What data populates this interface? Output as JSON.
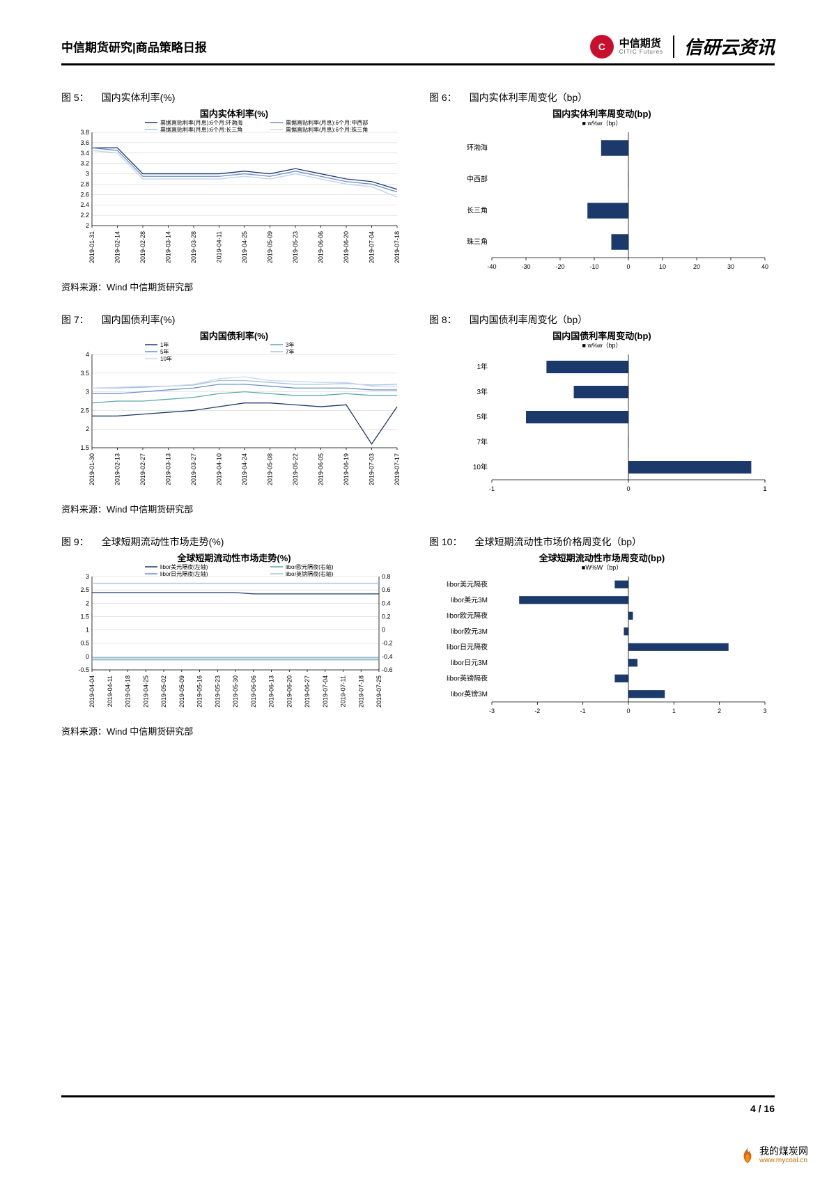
{
  "header": {
    "left": "中信期货研究|商品策略日报",
    "company": "中信期货",
    "company_en": "CITIC Futures",
    "brand": "信研云资讯"
  },
  "src": "资料来源：Wind  中信期货研究部",
  "footer": {
    "page": "4",
    "sep": "/",
    "total": "16"
  },
  "watermark": {
    "name": "我的煤炭网",
    "url": "www.mycoal.cn"
  },
  "fig5": {
    "label": "图 5：",
    "title": "国内实体利率(%)",
    "chart_title": "国内实体利率(%)",
    "legend": [
      "票据直贴利率(月息):6个月:环渤海",
      "票据直贴利率(月息):6个月:中西部",
      "票据直贴利率(月息):6个月:长三角",
      "票据直贴利率(月息):6个月:珠三角"
    ],
    "y": {
      "min": 2.0,
      "max": 3.8,
      "step": 0.2
    },
    "x": [
      "2019-01-31",
      "2019-02-14",
      "2019-02-28",
      "2019-03-14",
      "2019-03-28",
      "2019-04-11",
      "2019-04-25",
      "2019-05-09",
      "2019-05-23",
      "2019-06-06",
      "2019-06-20",
      "2019-07-04",
      "2019-07-18"
    ],
    "series": [
      [
        3.5,
        3.5,
        3.0,
        3.0,
        3.0,
        3.0,
        3.05,
        3.0,
        3.1,
        3.0,
        2.9,
        2.85,
        2.7
      ],
      [
        3.5,
        3.45,
        2.95,
        2.95,
        2.95,
        2.95,
        3.0,
        2.95,
        3.05,
        2.95,
        2.85,
        2.8,
        2.65
      ],
      [
        3.45,
        3.4,
        2.9,
        2.9,
        2.9,
        2.9,
        2.95,
        2.9,
        3.0,
        2.9,
        2.8,
        2.75,
        2.55
      ],
      [
        3.45,
        3.4,
        2.9,
        2.9,
        2.9,
        2.9,
        2.95,
        2.9,
        3.0,
        2.9,
        2.8,
        2.75,
        2.55
      ]
    ],
    "colors": [
      "#1b3a6b",
      "#6b8fc7",
      "#a6c0e0",
      "#c9d8ec"
    ]
  },
  "fig6": {
    "label": "图 6：",
    "title": "国内实体利率周变化（bp）",
    "chart_title": "国内实体利率周变动(bp)",
    "legend": "■ w%w（bp）",
    "categories": [
      "环渤海",
      "中西部",
      "长三角",
      "珠三角"
    ],
    "values": [
      -8,
      0,
      -12,
      -5
    ],
    "x": {
      "min": -40,
      "max": 40,
      "step": 10
    },
    "bar_color": "#1b3a6b"
  },
  "fig7": {
    "label": "图 7：",
    "title": "国内国债利率(%)",
    "chart_title": "国内国债利率(%)",
    "legend": [
      "1年",
      "3年",
      "5年",
      "7年",
      "10年"
    ],
    "y": {
      "min": 1.5,
      "max": 4.0,
      "step": 0.5
    },
    "x": [
      "2019-01-30",
      "2019-02-13",
      "2019-02-27",
      "2019-03-13",
      "2019-03-27",
      "2019-04-10",
      "2019-04-24",
      "2019-05-08",
      "2019-05-22",
      "2019-06-05",
      "2019-06-19",
      "2019-07-03",
      "2019-07-17"
    ],
    "series": [
      [
        2.35,
        2.35,
        2.4,
        2.45,
        2.5,
        2.6,
        2.7,
        2.7,
        2.65,
        2.6,
        2.65,
        1.6,
        2.6
      ],
      [
        2.7,
        2.75,
        2.75,
        2.8,
        2.85,
        2.95,
        3.0,
        2.95,
        2.9,
        2.9,
        2.95,
        2.9,
        2.9
      ],
      [
        2.95,
        2.95,
        3.0,
        3.05,
        3.1,
        3.2,
        3.2,
        3.15,
        3.1,
        3.1,
        3.1,
        3.05,
        3.05
      ],
      [
        3.1,
        3.1,
        3.12,
        3.15,
        3.18,
        3.3,
        3.3,
        3.25,
        3.2,
        3.2,
        3.22,
        3.18,
        3.2
      ],
      [
        3.1,
        3.12,
        3.15,
        3.15,
        3.2,
        3.35,
        3.4,
        3.3,
        3.28,
        3.25,
        3.25,
        3.15,
        3.15
      ]
    ],
    "colors": [
      "#1b3a6b",
      "#5fa8a8",
      "#6b8fc7",
      "#a6c0e0",
      "#c9d8ec"
    ]
  },
  "fig8": {
    "label": "图 8：",
    "title": "国内国债利率周变化（bp）",
    "chart_title": "国内国债利率周变动(bp)",
    "legend": "■ w%w（bp）",
    "categories": [
      "1年",
      "3年",
      "5年",
      "7年",
      "10年"
    ],
    "values": [
      -0.6,
      -0.4,
      -0.75,
      0,
      0.9
    ],
    "x": {
      "min": -1,
      "max": 1,
      "ticks": [
        -1,
        0,
        1,
        1
      ]
    },
    "bar_color": "#1b3a6b"
  },
  "fig9": {
    "label": "图 9：",
    "title": "全球短期流动性市场走势(%)",
    "chart_title": "全球短期流动性市场走势(%)",
    "legend_l": [
      "libor美元隔夜(左轴)",
      "libor欧元隔夜(右轴)"
    ],
    "legend_r": [
      "libor日元隔夜(左轴)",
      "libor英镑隔夜(右轴)"
    ],
    "yL": {
      "min": -0.5,
      "max": 3.0,
      "step": 0.5
    },
    "yR": {
      "min": -0.6,
      "max": 0.8,
      "step": 0.2
    },
    "x": [
      "2019-04-04",
      "2019-04-11",
      "2019-04-18",
      "2019-04-25",
      "2019-05-02",
      "2019-05-09",
      "2019-05-16",
      "2019-05-23",
      "2019-05-30",
      "2019-06-06",
      "2019-06-13",
      "2019-06-20",
      "2019-06-27",
      "2019-07-04",
      "2019-07-11",
      "2019-07-18",
      "2019-07-25"
    ],
    "series": [
      [
        2.4,
        2.4,
        2.4,
        2.4,
        2.4,
        2.4,
        2.4,
        2.4,
        2.4,
        2.35,
        2.35,
        2.35,
        2.35,
        2.35,
        2.35,
        2.35,
        2.35
      ],
      [
        -0.05,
        -0.05,
        -0.05,
        -0.05,
        -0.05,
        -0.05,
        -0.05,
        -0.05,
        -0.05,
        -0.05,
        -0.05,
        -0.05,
        -0.05,
        -0.05,
        -0.05,
        -0.05,
        -0.05
      ]
    ],
    "seriesR": [
      [
        -0.45,
        -0.45,
        -0.45,
        -0.45,
        -0.45,
        -0.45,
        -0.45,
        -0.45,
        -0.45,
        -0.45,
        -0.45,
        -0.45,
        -0.45,
        -0.45,
        -0.45,
        -0.45,
        -0.45
      ],
      [
        0.7,
        0.7,
        0.7,
        0.7,
        0.7,
        0.7,
        0.7,
        0.7,
        0.7,
        0.7,
        0.7,
        0.7,
        0.7,
        0.7,
        0.7,
        0.7,
        0.7
      ]
    ],
    "colors": [
      "#1b3a6b",
      "#5fa8a8",
      "#6b8fc7",
      "#a6c0e0"
    ]
  },
  "fig10": {
    "label": "图 10：",
    "title": "全球短期流动性市场价格周变化（bp）",
    "chart_title": "全球短期流动性市场周变动(bp)",
    "legend": "■W%W（bp）",
    "categories": [
      "libor美元隔夜",
      "libor美元3M",
      "libor欧元隔夜",
      "libor欧元3M",
      "libor日元隔夜",
      "libor日元3M",
      "libor英镑隔夜",
      "libor英镑3M"
    ],
    "values": [
      -0.3,
      -2.4,
      0.1,
      -0.1,
      2.2,
      0.2,
      -0.3,
      0.8
    ],
    "x": {
      "min": -3.0,
      "max": 3.0,
      "step": 1.0
    },
    "bar_color": "#1b3a6b"
  }
}
